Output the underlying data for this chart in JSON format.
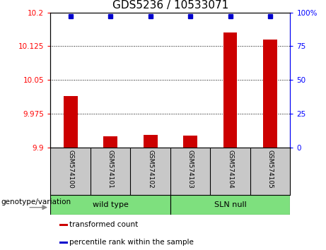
{
  "title": "GDS5236 / 10533071",
  "samples": [
    "GSM574100",
    "GSM574101",
    "GSM574102",
    "GSM574103",
    "GSM574104",
    "GSM574105"
  ],
  "transformed_counts": [
    10.015,
    9.925,
    9.928,
    9.926,
    10.155,
    10.14
  ],
  "percentile_ranks": [
    97,
    97,
    97,
    97,
    97,
    97
  ],
  "ylim_left": [
    9.9,
    10.2
  ],
  "ylim_right": [
    0,
    100
  ],
  "yticks_left": [
    9.9,
    9.975,
    10.05,
    10.125,
    10.2
  ],
  "ytick_labels_left": [
    "9.9",
    "9.975",
    "10.05",
    "10.125",
    "10.2"
  ],
  "yticks_right": [
    0,
    25,
    50,
    75,
    100
  ],
  "ytick_labels_right": [
    "0",
    "25",
    "50",
    "75",
    "100%"
  ],
  "groups": [
    {
      "label": "wild type",
      "start": 0,
      "end": 2,
      "color": "#7EE07E"
    },
    {
      "label": "SLN null",
      "start": 3,
      "end": 5,
      "color": "#7EE07E"
    }
  ],
  "bar_color": "#cc0000",
  "dot_color": "#0000cc",
  "bar_width": 0.35,
  "background_plot": "#ffffff",
  "background_xtick": "#c8c8c8",
  "genotype_label": "genotype/variation",
  "legend_items": [
    {
      "label": "transformed count",
      "color": "#cc0000"
    },
    {
      "label": "percentile rank within the sample",
      "color": "#0000cc"
    }
  ],
  "title_fontsize": 11,
  "tick_fontsize": 7.5,
  "sample_fontsize": 6.5,
  "group_fontsize": 8,
  "legend_fontsize": 7.5,
  "geno_fontsize": 7.5
}
